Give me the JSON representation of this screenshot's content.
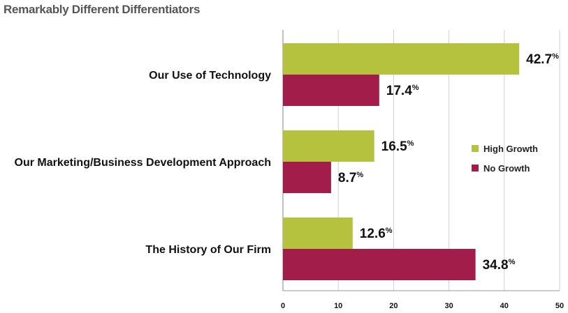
{
  "chart_data": {
    "type": "bar",
    "orientation": "horizontal",
    "title": "Remarkably Different Differentiators",
    "categories": [
      "Our Use of Technology",
      "Our Marketing/Business Development Approach",
      "The History of Our Firm"
    ],
    "series": [
      {
        "name": "High Growth",
        "color": "#b5c23d",
        "values": [
          42.7,
          16.5,
          12.6
        ],
        "labels": [
          "42.7",
          "16.5",
          "12.6"
        ]
      },
      {
        "name": "No Growth",
        "color": "#a31d4a",
        "values": [
          17.4,
          8.7,
          34.8
        ],
        "labels": [
          "17.4",
          "8.7",
          "34.8"
        ]
      }
    ],
    "value_suffix": "%",
    "xlim": [
      0,
      50
    ],
    "xticks": [
      "0",
      "10",
      "20",
      "30",
      "40",
      "50"
    ],
    "grid": true,
    "legend_position": "right"
  }
}
